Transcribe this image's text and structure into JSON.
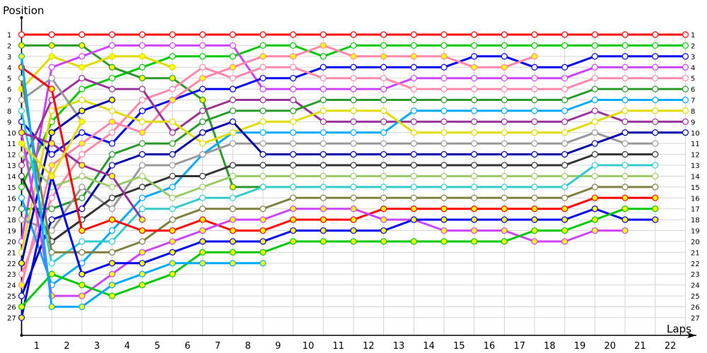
{
  "chart_data": {
    "type": "line",
    "title": "",
    "xlabel": "Laps",
    "ylabel": "Position",
    "x_ticks": [
      "1",
      "2",
      "3",
      "4",
      "5",
      "6",
      "7",
      "8",
      "9",
      "10",
      "11",
      "12",
      "13",
      "14",
      "15",
      "16",
      "17",
      "18",
      "19",
      "20",
      "21",
      "22"
    ],
    "y_ticks": [
      "1",
      "2",
      "3",
      "4",
      "5",
      "6",
      "7",
      "8",
      "9",
      "10",
      "11",
      "12",
      "13",
      "14",
      "15",
      "16",
      "17",
      "18",
      "19",
      "20",
      "21",
      "22",
      "23",
      "24",
      "25",
      "26",
      "27"
    ],
    "ylim": [
      1,
      27
    ],
    "xlim": [
      0,
      22
    ],
    "grid": true,
    "y_inverted": true,
    "series": [
      {
        "name": "Red",
        "color": "#ff0000",
        "fill": "#ffffff",
        "values": [
          1,
          1,
          1,
          1,
          1,
          1,
          1,
          1,
          1,
          1,
          1,
          1,
          1,
          1,
          1,
          1,
          1,
          1,
          1,
          1,
          1,
          1,
          1
        ]
      },
      {
        "name": "Green",
        "color": "#00c800",
        "fill": "#ffffff",
        "values": [
          15,
          9,
          6,
          5,
          4,
          3,
          3,
          3,
          2,
          2,
          3,
          2,
          2,
          2,
          2,
          2,
          2,
          2,
          2,
          2,
          2,
          2,
          2
        ]
      },
      {
        "name": "Dark Green",
        "color": "#2a9a2a",
        "fill": "#ffff00",
        "values": [
          2,
          2,
          2,
          4,
          5,
          5,
          7,
          15,
          15
        ]
      },
      {
        "name": "Yellow",
        "color": "#e0dc00",
        "fill": "#ffff00",
        "values": [
          6,
          3,
          4,
          3,
          3,
          4
        ]
      },
      {
        "name": "Violet",
        "color": "#cc44ff",
        "fill": "#ffffff",
        "values": [
          20,
          4,
          3,
          2,
          2,
          2,
          2,
          2,
          6,
          6,
          6,
          6,
          6,
          5,
          5,
          5,
          5,
          5,
          5,
          4,
          4,
          4,
          4
        ]
      },
      {
        "name": "Blue",
        "color": "#0000ee",
        "fill": "#ffffff",
        "values": [
          9,
          12,
          10,
          11,
          8,
          7,
          6,
          6,
          5,
          5,
          4,
          4,
          4,
          4,
          4,
          3,
          3,
          4,
          4,
          3,
          3,
          3,
          3
        ]
      },
      {
        "name": "Pink",
        "color": "#ff88aa",
        "fill": "#ffffff",
        "values": [
          23,
          16,
          12,
          10,
          7,
          6,
          4,
          5,
          4,
          4,
          5,
          5,
          5,
          6,
          6,
          6,
          6,
          6,
          6,
          5,
          5,
          5,
          5
        ]
      },
      {
        "name": "Pink Yellow",
        "color": "#ff88aa",
        "fill": "#ffff00",
        "values": [
          24,
          13,
          11,
          9,
          10,
          7,
          5,
          4,
          3,
          3,
          2,
          3,
          3,
          3,
          3,
          4,
          4,
          3
        ]
      },
      {
        "name": "Purple",
        "color": "#993399",
        "fill": "#ffffff",
        "values": [
          13,
          7,
          5,
          6,
          6,
          10,
          8,
          7,
          7,
          7,
          9,
          9,
          9,
          9,
          9,
          9,
          9,
          9,
          9,
          8,
          9,
          9,
          9
        ]
      },
      {
        "name": "Dark Green 2",
        "color": "#2a9a2a",
        "fill": "#ffffff",
        "values": [
          17,
          17,
          16,
          12,
          11,
          11,
          9,
          8,
          8,
          8,
          7,
          7,
          7,
          7,
          7,
          7,
          7,
          7,
          7,
          6,
          6,
          6,
          6
        ]
      },
      {
        "name": "Sky Blue",
        "color": "#00aaff",
        "fill": "#ffffff",
        "values": [
          16,
          24,
          22,
          19,
          16,
          15,
          12,
          10,
          10,
          10,
          10,
          10,
          10,
          8,
          8,
          8,
          8,
          8,
          8,
          7,
          7,
          7,
          7
        ]
      },
      {
        "name": "Yellow 2",
        "color": "#e0dc00",
        "fill": "#ffffff",
        "values": [
          21,
          8,
          7,
          8,
          9,
          9,
          11,
          10,
          9,
          9,
          8,
          8,
          8,
          10,
          10,
          10,
          10,
          10,
          10,
          9,
          8,
          8,
          8
        ]
      },
      {
        "name": "Gray",
        "color": "#999999",
        "fill": "#ffffff",
        "values": [
          7,
          5,
          9
        ]
      },
      {
        "name": "Gray 2",
        "color": "#999999",
        "fill": "#ffffff",
        "values": [
          18,
          19,
          15,
          17,
          13,
          13,
          12,
          11,
          11,
          11,
          11,
          11,
          11,
          11,
          11,
          11,
          11,
          11,
          11,
          10,
          11,
          11
        ]
      },
      {
        "name": "Navy",
        "color": "#0000aa",
        "fill": "#ffff00",
        "values": [
          22,
          10,
          8,
          7
        ]
      },
      {
        "name": "Navy 2",
        "color": "#0000aa",
        "fill": "#ffffff",
        "values": [
          25,
          18,
          17,
          13,
          12,
          12,
          10,
          9,
          12,
          12,
          12,
          12,
          12,
          12,
          12,
          12,
          12,
          12,
          12,
          11,
          10,
          10,
          10
        ]
      },
      {
        "name": "Black",
        "color": "#333333",
        "fill": "#ffffff",
        "values": [
          14,
          20,
          18,
          16,
          15,
          14,
          14,
          13,
          13,
          13,
          13,
          13,
          13,
          13,
          13,
          13,
          13,
          13,
          13,
          12,
          12,
          12
        ]
      },
      {
        "name": "Light Green",
        "color": "#99cc66",
        "fill": "#ffffff",
        "values": [
          12,
          15,
          14,
          15,
          14,
          16,
          15,
          14,
          14,
          14,
          14,
          14,
          14,
          14,
          14,
          14,
          14,
          14,
          14,
          14,
          14,
          14
        ]
      },
      {
        "name": "Teal",
        "color": "#33cccc",
        "fill": "#ffffff",
        "values": [
          8,
          22,
          20,
          20,
          17,
          17,
          16,
          16,
          15,
          15,
          15,
          15,
          15,
          15,
          15,
          15,
          15,
          15,
          15,
          13,
          13,
          13
        ]
      },
      {
        "name": "Olive",
        "color": "#808040",
        "fill": "#ffffff",
        "values": [
          5,
          21,
          21,
          21,
          20,
          18,
          17,
          17,
          17,
          16,
          16,
          16,
          16,
          16,
          16,
          16,
          16,
          16,
          16,
          15,
          15,
          15
        ]
      },
      {
        "name": "Red 2",
        "color": "#ff0000",
        "fill": "#ffff00",
        "values": [
          4,
          6,
          19,
          18,
          19,
          19,
          18,
          19,
          19,
          18,
          18,
          18,
          17,
          17,
          17,
          17,
          17,
          17,
          17,
          16,
          16,
          16
        ]
      },
      {
        "name": "Violet 2",
        "color": "#cc44ff",
        "fill": "#ffff00",
        "values": [
          10,
          25,
          25,
          23,
          21,
          20,
          19,
          18,
          18,
          17,
          17,
          17,
          18,
          18,
          19,
          19,
          19,
          20,
          20,
          19,
          19
        ]
      },
      {
        "name": "Blue 2",
        "color": "#0000ee",
        "fill": "#ffff00",
        "values": [
          27,
          14,
          23,
          22,
          22,
          21,
          20,
          20,
          20,
          19,
          19,
          19,
          19,
          18,
          18,
          18,
          18,
          18,
          18,
          17,
          18,
          18
        ]
      },
      {
        "name": "Green 2",
        "color": "#00c800",
        "fill": "#ffff00",
        "values": [
          26,
          23,
          24,
          25,
          24,
          23,
          21,
          21,
          21,
          20,
          20,
          20,
          20,
          20,
          20,
          20,
          20,
          19,
          19,
          18,
          17,
          17
        ]
      },
      {
        "name": "Sky Blue 2",
        "color": "#00aaff",
        "fill": "#ffff00",
        "values": [
          3,
          26,
          26,
          24,
          23,
          22,
          22,
          22,
          22
        ]
      },
      {
        "name": "Purple 2",
        "color": "#993399",
        "fill": "#ffff00",
        "values": [
          10,
          11,
          13,
          14,
          18
        ]
      },
      {
        "name": "Yellow 3",
        "color": "#e0dc00",
        "fill": "#ffff00",
        "values": [
          11,
          14,
          9
        ]
      }
    ]
  },
  "axes": {
    "x_label": "Laps",
    "y_label": "Position"
  }
}
